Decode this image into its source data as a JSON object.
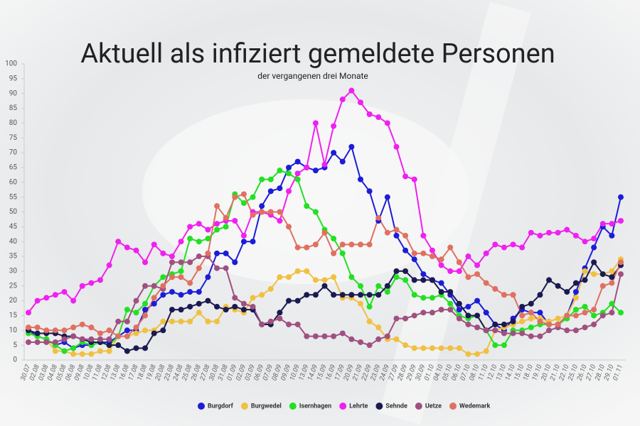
{
  "chart_data": {
    "type": "line",
    "title": "Aktuell als infiziert gemeldete Personen",
    "subtitle": "der vergangenen drei Monate",
    "categories": [
      "30.07",
      "02.08",
      "03.08",
      "04.08",
      "05.08",
      "06.08",
      "09.08",
      "10.08",
      "11.08",
      "12.08",
      "13.08",
      "16.08",
      "17.08",
      "18.08",
      "19.08",
      "20.08",
      "23.08",
      "24.08",
      "25.08",
      "26.08",
      "27.08",
      "30.08",
      "31.08",
      "01.09",
      "02.09",
      "03.09",
      "06.09",
      "07.09",
      "08.09",
      "09.09",
      "10.09",
      "13.09",
      "14.09",
      "15.09",
      "16.09",
      "17.09",
      "20.09",
      "21.09",
      "22.09",
      "23.09",
      "24.09",
      "27.09",
      "28.09",
      "29.09",
      "30.09",
      "01.10",
      "04.10",
      "05.10",
      "06.10",
      "07.10",
      "08.10",
      "11.10",
      "12.10",
      "13.10",
      "14.10",
      "15.10",
      "18.10",
      "19.10",
      "20.10",
      "21.10",
      "22.10",
      "25.10",
      "26.10",
      "27.10",
      "28.10",
      "29.10",
      "01.11"
    ],
    "series": [
      {
        "name": "Burgdorf",
        "color": "#1c1cd8",
        "values": [
          10,
          8,
          7,
          5,
          6,
          4,
          5,
          5,
          6,
          6,
          8,
          10,
          10,
          17,
          19,
          22,
          23,
          22,
          23,
          23,
          28,
          36,
          36,
          33,
          40,
          40,
          52,
          57,
          58,
          65,
          67,
          65,
          64,
          65,
          70,
          67,
          72,
          61,
          57,
          47,
          55,
          42,
          37,
          34,
          29,
          27,
          26,
          22,
          17,
          18,
          20,
          16,
          12,
          10,
          14,
          17,
          16,
          16,
          12,
          12,
          15,
          23,
          31,
          38,
          45,
          42,
          55
        ]
      },
      {
        "name": "Burgwedel",
        "color": "#f0c040",
        "values": [
          9,
          8,
          7,
          3,
          3,
          2,
          2,
          2,
          3,
          3,
          8,
          8,
          9,
          10,
          10,
          13,
          13,
          13,
          13,
          16,
          13,
          13,
          18,
          17,
          16,
          21,
          22,
          24,
          28,
          28,
          30,
          30,
          27,
          27,
          28,
          21,
          21,
          19,
          13,
          11,
          7,
          7,
          5,
          4,
          4,
          4,
          4,
          4,
          4,
          2,
          2,
          3,
          10,
          11,
          12,
          13,
          14,
          14,
          13,
          14,
          15,
          21,
          30,
          29,
          29,
          30,
          34
        ]
      },
      {
        "name": "Isernhagen",
        "color": "#22e022",
        "values": [
          9,
          8,
          7,
          5,
          3,
          4,
          6,
          5,
          6,
          5,
          8,
          17,
          16,
          19,
          25,
          28,
          29,
          30,
          41,
          40,
          41,
          44,
          45,
          56,
          53,
          55,
          61,
          61,
          64,
          63,
          61,
          52,
          50,
          44,
          41,
          36,
          28,
          25,
          18,
          25,
          23,
          28,
          27,
          22,
          21,
          21,
          22,
          19,
          15,
          14,
          15,
          10,
          5,
          5,
          10,
          10,
          11,
          12,
          12,
          12,
          14,
          17,
          18,
          15,
          16,
          19,
          16
        ]
      },
      {
        "name": "Lehrte",
        "color": "#f020f0",
        "values": [
          16,
          20,
          21,
          22,
          23,
          20,
          25,
          26,
          27,
          32,
          40,
          38,
          37,
          33,
          39,
          36,
          35,
          40,
          45,
          46,
          44,
          46,
          47,
          47,
          42,
          50,
          50,
          49,
          47,
          57,
          63,
          65,
          80,
          66,
          79,
          88,
          91,
          87,
          83,
          82,
          80,
          72,
          62,
          61,
          42,
          37,
          32,
          30,
          30,
          35,
          32,
          36,
          39,
          38,
          39,
          38,
          43,
          42,
          43,
          43,
          44,
          42,
          40,
          41,
          46,
          46,
          47
        ]
      },
      {
        "name": "Sehnde",
        "color": "#1a1a50",
        "values": [
          10,
          9,
          9,
          9,
          8,
          8,
          7,
          6,
          6,
          5,
          5,
          3,
          4,
          4,
          9,
          10,
          17,
          17,
          18,
          19,
          20,
          18,
          17,
          18,
          17,
          17,
          12,
          12,
          16,
          20,
          20,
          22,
          22,
          25,
          22,
          22,
          22,
          22,
          22,
          22,
          25,
          30,
          30,
          27,
          27,
          27,
          23,
          23,
          19,
          15,
          15,
          10,
          12,
          12,
          13,
          18,
          19,
          22,
          27,
          25,
          23,
          26,
          27,
          33,
          29,
          28,
          32
        ]
      },
      {
        "name": "Uetze",
        "color": "#a05080",
        "values": [
          6,
          6,
          6,
          6,
          7,
          8,
          7,
          7,
          7,
          7,
          13,
          13,
          20,
          25,
          25,
          24,
          33,
          33,
          33,
          35,
          35,
          31,
          31,
          21,
          19,
          18,
          12,
          13,
          14,
          12,
          12,
          8,
          8,
          8,
          8,
          9,
          7,
          6,
          5,
          7,
          8,
          14,
          14,
          15,
          16,
          16,
          17,
          17,
          14,
          12,
          11,
          10,
          10,
          9,
          9,
          9,
          8,
          8,
          10,
          11,
          10,
          10,
          11,
          12,
          15,
          16,
          29
        ]
      },
      {
        "name": "Wedemark",
        "color": "#e07060",
        "values": [
          11,
          11,
          10,
          10,
          10,
          11,
          12,
          11,
          9,
          10,
          8,
          8,
          11,
          15,
          21,
          25,
          28,
          28,
          26,
          31,
          36,
          52,
          48,
          55,
          56,
          49,
          50,
          50,
          50,
          45,
          38,
          38,
          39,
          43,
          36,
          39,
          39,
          39,
          39,
          48,
          43,
          44,
          42,
          36,
          36,
          35,
          34,
          38,
          33,
          28,
          29,
          26,
          24,
          22,
          22,
          15,
          16,
          13,
          12,
          12,
          15,
          15,
          16,
          17,
          25,
          26,
          33
        ]
      }
    ],
    "ylim": [
      0,
      100
    ],
    "yticks": [
      0,
      5,
      10,
      15,
      20,
      25,
      30,
      35,
      40,
      45,
      50,
      55,
      60,
      65,
      70,
      75,
      80,
      85,
      90,
      95,
      100
    ],
    "grid": false,
    "legend": "bottom"
  }
}
